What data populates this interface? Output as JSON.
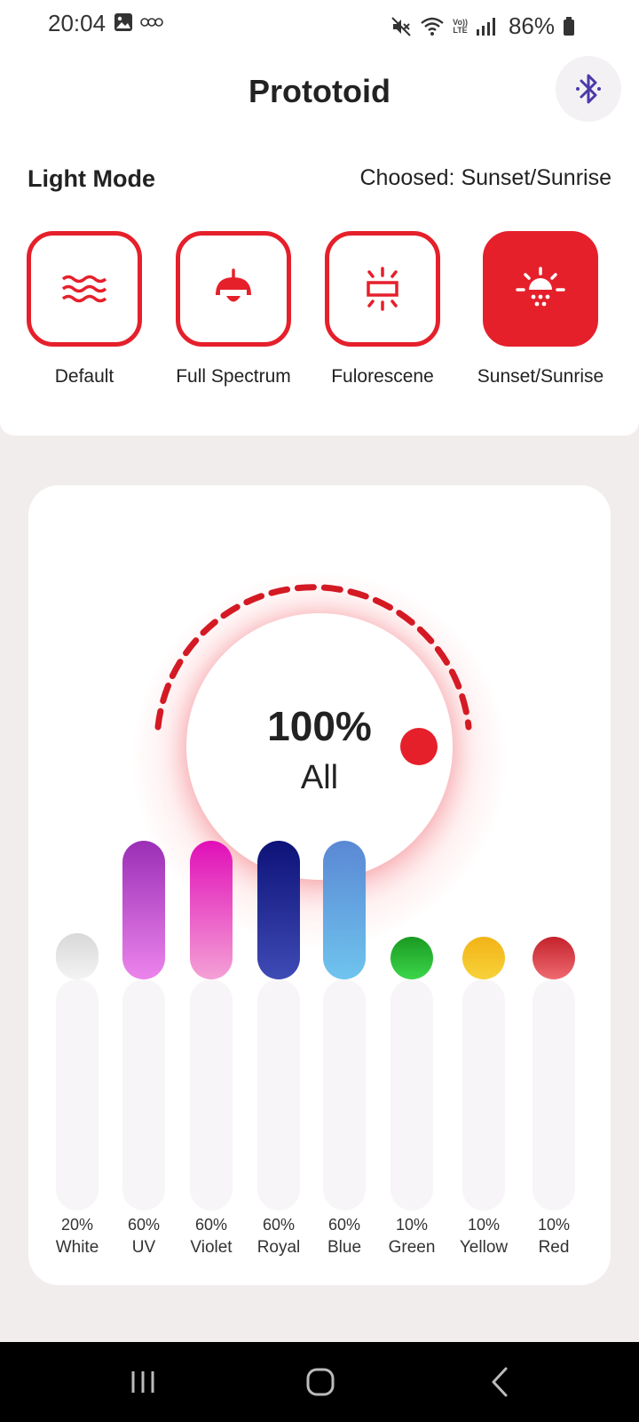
{
  "status_bar": {
    "time": "20:04",
    "battery_percent": "86%",
    "left_icons": [
      "gallery-icon",
      "sticker-icon"
    ],
    "right_icons": [
      "mute-icon",
      "wifi-icon",
      "volte-icon",
      "signal-icon",
      "battery-icon"
    ],
    "volte_top": "Vo))",
    "volte_bottom": "LTE"
  },
  "header": {
    "title": "Prototoid",
    "bluetooth_icon": "bluetooth-icon"
  },
  "light_mode": {
    "section_title": "Light Mode",
    "chosen_text": "Choosed: Sunset/Sunrise",
    "accent_color": "#e5202b",
    "modes": [
      {
        "label": "Default",
        "icon": "waves-icon",
        "selected": false
      },
      {
        "label": "Full Spectrum",
        "icon": "pendant-lamp-icon",
        "selected": false
      },
      {
        "label": "Fulorescene",
        "icon": "fluorescent-tube-icon",
        "selected": false
      },
      {
        "label": "Sunset/Sunrise",
        "icon": "sunrise-icon",
        "selected": true
      }
    ]
  },
  "master_dial": {
    "value_text": "100%",
    "label": "All",
    "level": 1.0
  },
  "channels": [
    {
      "percent": "20%",
      "name": "White",
      "level": 0.2,
      "color_top": "#d8d8d8",
      "color_bottom": "#f3f3f3"
    },
    {
      "percent": "60%",
      "name": "UV",
      "level": 0.6,
      "color_top": "#9b2fb6",
      "color_bottom": "#ec84ec"
    },
    {
      "percent": "60%",
      "name": "Violet",
      "level": 0.6,
      "color_top": "#e00fb8",
      "color_bottom": "#f4a1d6"
    },
    {
      "percent": "60%",
      "name": "Royal",
      "level": 0.6,
      "color_top": "#0d1278",
      "color_bottom": "#3f4bb5"
    },
    {
      "percent": "60%",
      "name": "Blue",
      "level": 0.6,
      "color_top": "#5a88d4",
      "color_bottom": "#6fc4ee"
    },
    {
      "percent": "10%",
      "name": "Green",
      "level": 0.1,
      "color_top": "#1a9a22",
      "color_bottom": "#3cd64a"
    },
    {
      "percent": "10%",
      "name": "Yellow",
      "level": 0.1,
      "color_top": "#f2b316",
      "color_bottom": "#f7d23a"
    },
    {
      "percent": "10%",
      "name": "Red",
      "level": 0.1,
      "color_top": "#c4222c",
      "color_bottom": "#ef6a70"
    }
  ],
  "nav_bar": {
    "buttons": [
      "recents-icon",
      "home-icon",
      "back-icon"
    ]
  }
}
